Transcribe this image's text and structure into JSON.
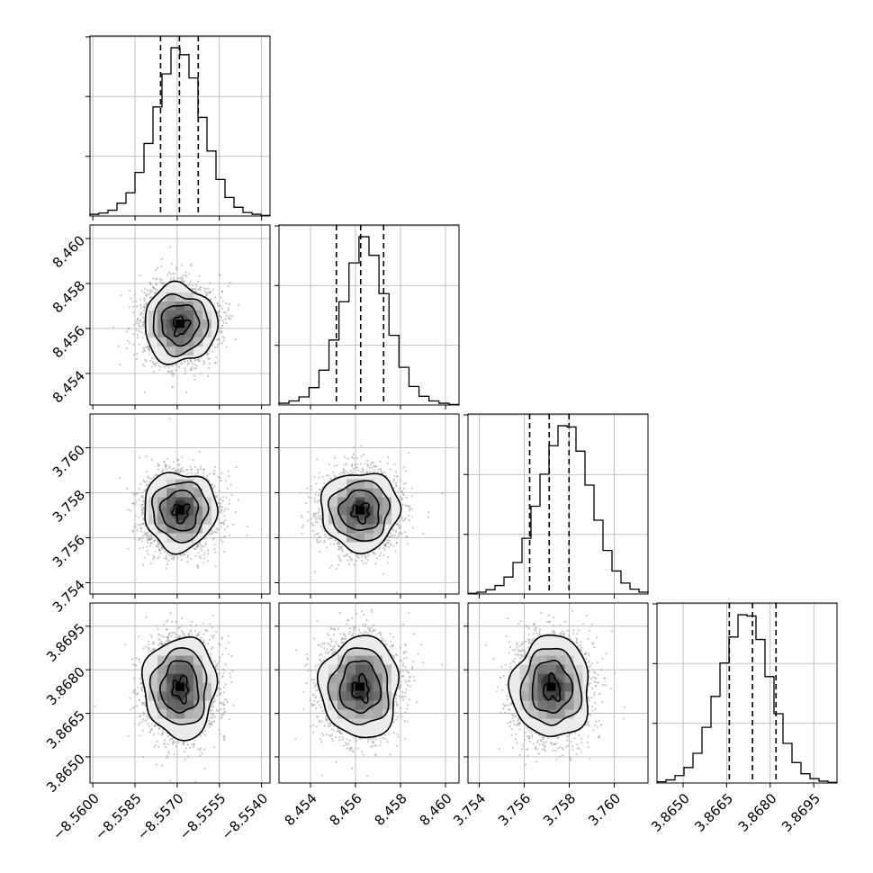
{
  "chart_data": {
    "type": "corner",
    "parameters": [
      {
        "index": 0,
        "ticks": [
          -8.56,
          -8.5585,
          -8.557,
          -8.5555,
          -8.554
        ],
        "tick_labels": [
          "−8.5600",
          "−8.5585",
          "−8.5570",
          "−8.5555",
          "−8.5540"
        ],
        "range": [
          -8.5601,
          -8.5537
        ],
        "mean": -8.5569,
        "sd": 0.00063,
        "quantiles": [
          -8.55759,
          -8.55692,
          -8.55625
        ]
      },
      {
        "index": 1,
        "ticks": [
          8.454,
          8.456,
          8.458,
          8.46
        ],
        "tick_labels": [
          "8.454",
          "8.456",
          "8.458",
          "8.460"
        ],
        "range": [
          8.4526,
          8.4606
        ],
        "mean": 8.4562,
        "sd": 0.00085,
        "quantiles": [
          8.45515,
          8.45623,
          8.45725
        ]
      },
      {
        "index": 2,
        "ticks": [
          3.754,
          3.756,
          3.758,
          3.76
        ],
        "tick_labels": [
          "3.754",
          "3.756",
          "3.758",
          "3.760"
        ],
        "range": [
          3.7535,
          3.7615
        ],
        "mean": 3.7572,
        "sd": 0.00085,
        "quantiles": [
          3.75624,
          3.75711,
          3.75799
        ]
      },
      {
        "index": 3,
        "ticks": [
          3.865,
          3.8665,
          3.868,
          3.8695
        ],
        "tick_labels": [
          "3.8650",
          "3.8665",
          "3.8680",
          "3.8695"
        ],
        "range": [
          3.8641,
          3.8703
        ],
        "mean": 3.8674,
        "sd": 0.00085,
        "quantiles": [
          3.86659,
          3.86739,
          3.8682
        ]
      }
    ],
    "histograms": [
      {
        "param": 0,
        "counts": [
          3,
          5,
          10,
          22,
          40,
          75,
          125,
          188,
          245,
          290,
          278,
          238,
          170,
          112,
          63,
          32,
          15,
          6,
          3,
          1
        ]
      },
      {
        "param": 1,
        "counts": [
          3,
          7,
          14,
          30,
          60,
          112,
          178,
          245,
          290,
          258,
          192,
          120,
          65,
          32,
          15,
          7,
          3,
          1
        ]
      },
      {
        "param": 2,
        "counts": [
          1,
          3,
          7,
          14,
          28,
          52,
          92,
          145,
          198,
          245,
          278,
          276,
          236,
          180,
          122,
          72,
          38,
          18,
          8,
          3
        ]
      },
      {
        "param": 3,
        "counts": [
          2,
          5,
          12,
          25,
          48,
          90,
          140,
          194,
          236,
          272,
          270,
          232,
          172,
          112,
          64,
          33,
          15,
          7,
          3,
          1
        ]
      }
    ],
    "correlations": "none (independent, roughly circular 2D posteriors)",
    "grid": true,
    "xlabel": "",
    "ylabel": ""
  }
}
